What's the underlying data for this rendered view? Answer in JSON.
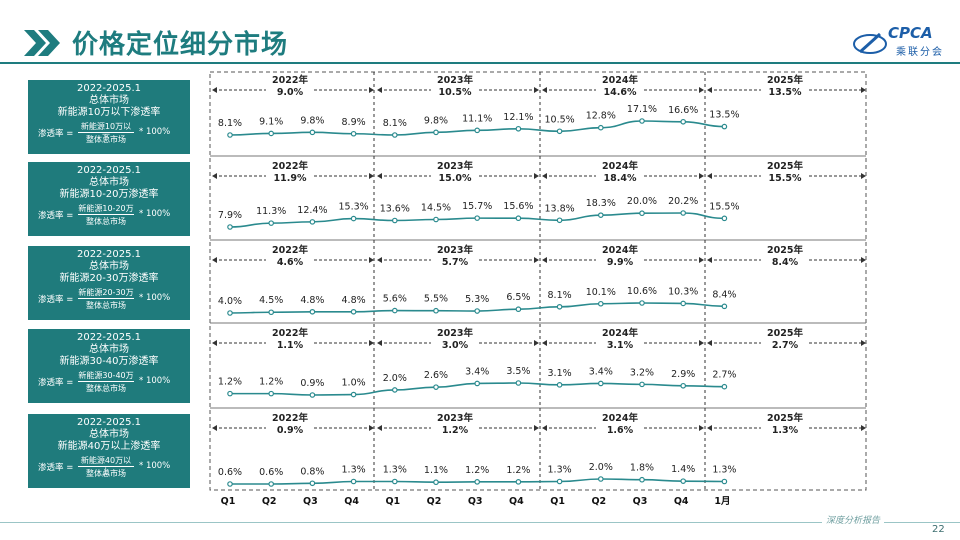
{
  "header": {
    "title": "价格定位细分市场"
  },
  "logo": {
    "text": "CPCA",
    "sub": "乘联分会"
  },
  "footer": {
    "text": "深度分析报告",
    "page": "22"
  },
  "colors": {
    "accent": "#1f7b7c",
    "line": "#2a8a8e",
    "title": "#1e7c7f"
  },
  "panels": [
    {
      "box": {
        "period": "2022-2025.1",
        "market": "总体市场",
        "segment": "新能源10万以下渗透率",
        "lhs": "渗透率 =",
        "numerator": "新能源10万以下",
        "denominator": "整体总市场",
        "mult": "* 100%"
      }
    },
    {
      "box": {
        "period": "2022-2025.1",
        "market": "总体市场",
        "segment": "新能源10-20万渗透率",
        "lhs": "渗透率 =",
        "numerator": "新能源10-20万",
        "denominator": "整体总市场",
        "mult": "* 100%"
      }
    },
    {
      "box": {
        "period": "2022-2025.1",
        "market": "总体市场",
        "segment": "新能源20-30万渗透率",
        "lhs": "渗透率 =",
        "numerator": "新能源20-30万",
        "denominator": "整体总市场",
        "mult": "* 100%"
      }
    },
    {
      "box": {
        "period": "2022-2025.1",
        "market": "总体市场",
        "segment": "新能源30-40万渗透率",
        "lhs": "渗透率 =",
        "numerator": "新能源30-40万",
        "denominator": "整体总市场",
        "mult": "* 100%"
      }
    },
    {
      "box": {
        "period": "2022-2025.1",
        "market": "总体市场",
        "segment": "新能源40万以上渗透率",
        "lhs": "渗透率 =",
        "numerator": "新能源40万以上",
        "denominator": "整体总市场",
        "mult": "* 100%"
      }
    }
  ],
  "chart_data": {
    "type": "line",
    "categories": [
      "Q1",
      "Q2",
      "Q3",
      "Q4",
      "Q1",
      "Q2",
      "Q3",
      "Q4",
      "Q1",
      "Q2",
      "Q3",
      "Q4",
      "1月"
    ],
    "years": [
      "2022年",
      "2023年",
      "2024年",
      "2025年"
    ],
    "series": [
      {
        "name": "新能源10万以下渗透率",
        "values": [
          8.1,
          9.1,
          9.8,
          8.9,
          8.1,
          9.8,
          11.1,
          12.1,
          10.5,
          12.8,
          17.1,
          16.6,
          13.5
        ],
        "labels": [
          "8.1%",
          "9.1%",
          "9.8%",
          "8.9%",
          "8.1%",
          "9.8%",
          "11.1%",
          "12.1%",
          "10.5%",
          "12.8%",
          "17.1%",
          "16.6%",
          "13.5%"
        ],
        "annual": [
          "9.0%",
          "10.5%",
          "14.6%",
          "13.5%"
        ]
      },
      {
        "name": "新能源10-20万渗透率",
        "values": [
          7.9,
          11.3,
          12.4,
          15.3,
          13.6,
          14.5,
          15.7,
          15.6,
          13.8,
          18.3,
          20.0,
          20.2,
          15.5
        ],
        "labels": [
          "7.9%",
          "11.3%",
          "12.4%",
          "15.3%",
          "13.6%",
          "14.5%",
          "15.7%",
          "15.6%",
          "13.8%",
          "18.3%",
          "20.0%",
          "20.2%",
          "15.5%"
        ],
        "annual": [
          "11.9%",
          "15.0%",
          "18.4%",
          "15.5%"
        ]
      },
      {
        "name": "新能源20-30万渗透率",
        "values": [
          4.0,
          4.5,
          4.8,
          4.8,
          5.6,
          5.5,
          5.3,
          6.5,
          8.1,
          10.1,
          10.6,
          10.3,
          8.4
        ],
        "labels": [
          "4.0%",
          "4.5%",
          "4.8%",
          "4.8%",
          "5.6%",
          "5.5%",
          "5.3%",
          "6.5%",
          "8.1%",
          "10.1%",
          "10.6%",
          "10.3%",
          "8.4%"
        ],
        "annual": [
          "4.6%",
          "5.7%",
          "9.9%",
          "8.4%"
        ]
      },
      {
        "name": "新能源30-40万渗透率",
        "values": [
          1.2,
          1.2,
          0.9,
          1.0,
          2.0,
          2.6,
          3.4,
          3.5,
          3.1,
          3.4,
          3.2,
          2.9,
          2.7
        ],
        "labels": [
          "1.2%",
          "1.2%",
          "0.9%",
          "1.0%",
          "2.0%",
          "2.6%",
          "3.4%",
          "3.5%",
          "3.1%",
          "3.4%",
          "3.2%",
          "2.9%",
          "2.7%"
        ],
        "annual": [
          "1.1%",
          "3.0%",
          "3.1%",
          "2.7%"
        ]
      },
      {
        "name": "新能源40万以上渗透率",
        "values": [
          0.6,
          0.6,
          0.8,
          1.3,
          1.3,
          1.1,
          1.2,
          1.2,
          1.3,
          2.0,
          1.8,
          1.4,
          1.3
        ],
        "labels": [
          "0.6%",
          "0.6%",
          "0.8%",
          "1.3%",
          "1.3%",
          "1.1%",
          "1.2%",
          "1.2%",
          "1.3%",
          "2.0%",
          "1.8%",
          "1.4%",
          "1.3%"
        ],
        "annual": [
          "0.9%",
          "1.2%",
          "1.6%",
          "1.3%"
        ]
      }
    ],
    "title": "",
    "xlabel": "",
    "ylabel": ""
  }
}
